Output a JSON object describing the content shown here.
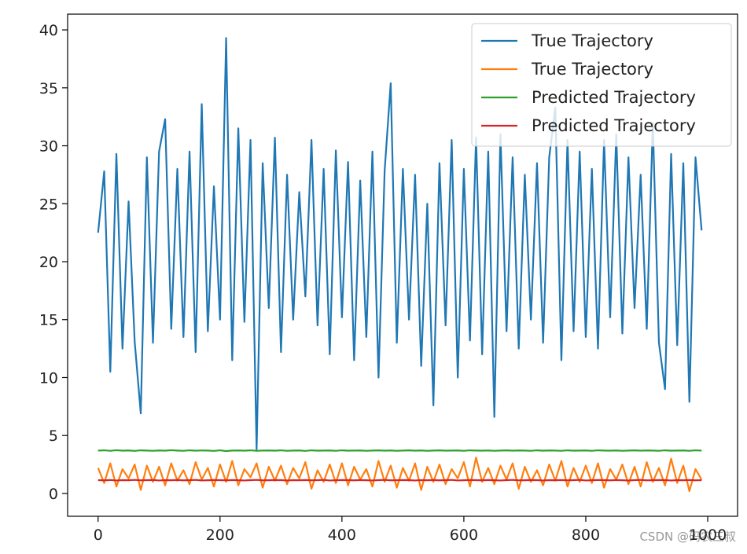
{
  "chart_data": {
    "type": "line",
    "x": [
      0,
      10,
      20,
      30,
      40,
      50,
      60,
      70,
      80,
      90,
      100,
      110,
      120,
      130,
      140,
      150,
      160,
      170,
      180,
      190,
      200,
      210,
      220,
      230,
      240,
      250,
      260,
      270,
      280,
      290,
      300,
      310,
      320,
      330,
      340,
      350,
      360,
      370,
      380,
      390,
      400,
      410,
      420,
      430,
      440,
      450,
      460,
      470,
      480,
      490,
      500,
      510,
      520,
      530,
      540,
      550,
      560,
      570,
      580,
      590,
      600,
      610,
      620,
      630,
      640,
      650,
      660,
      670,
      680,
      690,
      700,
      710,
      720,
      730,
      740,
      750,
      760,
      770,
      780,
      790,
      800,
      810,
      820,
      830,
      840,
      850,
      860,
      870,
      880,
      890,
      900,
      910,
      920,
      930,
      940,
      950,
      960,
      970,
      980,
      990
    ],
    "series": [
      {
        "name": "True Trajectory",
        "color": "#1f77b4",
        "values": [
          22.5,
          27.8,
          10.5,
          29.3,
          12.5,
          25.2,
          13.1,
          6.9,
          29.0,
          13.0,
          29.5,
          32.3,
          14.2,
          28.0,
          13.5,
          29.5,
          12.2,
          33.6,
          14.0,
          26.5,
          15.0,
          39.3,
          11.5,
          31.5,
          14.8,
          30.5,
          3.8,
          28.5,
          16.0,
          30.7,
          12.2,
          27.5,
          15.0,
          26.0,
          17.0,
          30.5,
          14.5,
          28.0,
          12.0,
          29.6,
          15.2,
          28.6,
          11.5,
          27.0,
          13.5,
          29.5,
          10.0,
          27.8,
          35.4,
          13.0,
          28.0,
          15.0,
          27.5,
          11.0,
          25.0,
          7.6,
          28.5,
          14.5,
          30.5,
          10.0,
          28.0,
          13.2,
          30.7,
          12.0,
          29.5,
          6.6,
          31.0,
          14.0,
          29.0,
          12.5,
          27.5,
          15.0,
          28.5,
          13.0,
          29.0,
          33.3,
          11.5,
          30.5,
          14.0,
          29.5,
          13.5,
          28.0,
          12.5,
          30.5,
          15.2,
          31.0,
          13.8,
          29.0,
          16.0,
          27.5,
          14.2,
          32.0,
          13.0,
          9.0,
          29.3,
          12.8,
          28.5,
          7.9,
          29.0,
          22.7
        ]
      },
      {
        "name": "True Trajectory",
        "color": "#ff7f0e",
        "values": [
          2.2,
          0.9,
          2.6,
          0.6,
          2.1,
          1.3,
          2.5,
          0.3,
          2.4,
          1.0,
          2.3,
          0.7,
          2.6,
          1.1,
          2.0,
          0.8,
          2.7,
          1.2,
          2.2,
          0.6,
          2.5,
          1.0,
          2.8,
          0.7,
          2.1,
          1.4,
          2.6,
          0.5,
          2.3,
          1.1,
          2.4,
          0.8,
          2.2,
          1.3,
          2.7,
          0.4,
          2.0,
          1.0,
          2.5,
          0.9,
          2.6,
          0.7,
          2.3,
          1.2,
          2.1,
          0.6,
          2.8,
          1.0,
          2.4,
          0.5,
          2.2,
          1.1,
          2.6,
          0.3,
          2.3,
          1.0,
          2.5,
          0.8,
          2.1,
          1.3,
          2.7,
          0.6,
          3.1,
          1.0,
          2.2,
          0.8,
          2.4,
          1.2,
          2.6,
          0.4,
          2.3,
          1.0,
          2.0,
          0.7,
          2.5,
          1.1,
          2.8,
          0.6,
          2.2,
          1.0,
          2.4,
          0.9,
          2.6,
          0.5,
          2.1,
          1.2,
          2.5,
          0.8,
          2.3,
          0.6,
          2.7,
          1.0,
          2.2,
          0.7,
          3.0,
          0.9,
          2.4,
          0.2,
          2.1,
          1.2
        ]
      },
      {
        "name": "Predicted Trajectory",
        "color": "#2ca02c",
        "values": [
          3.7,
          3.72,
          3.68,
          3.73,
          3.69,
          3.71,
          3.67,
          3.72,
          3.7,
          3.68,
          3.71,
          3.69,
          3.73,
          3.7,
          3.68,
          3.72,
          3.69,
          3.71,
          3.7,
          3.67,
          3.72,
          3.66,
          3.7,
          3.71,
          3.69,
          3.72,
          3.68,
          3.7,
          3.71,
          3.69,
          3.72,
          3.68,
          3.7,
          3.71,
          3.67,
          3.72,
          3.69,
          3.7,
          3.71,
          3.68,
          3.72,
          3.69,
          3.7,
          3.71,
          3.68,
          3.7,
          3.72,
          3.69,
          3.71,
          3.68,
          3.7,
          3.72,
          3.69,
          3.71,
          3.68,
          3.7,
          3.72,
          3.69,
          3.7,
          3.71,
          3.68,
          3.72,
          3.7,
          3.69,
          3.71,
          3.68,
          3.7,
          3.72,
          3.69,
          3.71,
          3.7,
          3.68,
          3.72,
          3.69,
          3.71,
          3.7,
          3.68,
          3.72,
          3.69,
          3.7,
          3.71,
          3.68,
          3.72,
          3.7,
          3.69,
          3.71,
          3.68,
          3.7,
          3.72,
          3.69,
          3.71,
          3.7,
          3.68,
          3.72,
          3.69,
          3.7,
          3.71,
          3.68,
          3.72,
          3.7
        ]
      },
      {
        "name": "Predicted Trajectory",
        "color": "#d62728",
        "values": [
          1.15,
          1.13,
          1.16,
          1.12,
          1.15,
          1.14,
          1.17,
          1.13,
          1.15,
          1.16,
          1.12,
          1.15,
          1.14,
          1.16,
          1.13,
          1.15,
          1.17,
          1.12,
          1.14,
          1.16,
          1.15,
          1.13,
          1.16,
          1.14,
          1.12,
          1.15,
          1.17,
          1.13,
          1.14,
          1.16,
          1.15,
          1.12,
          1.15,
          1.14,
          1.16,
          1.13,
          1.15,
          1.17,
          1.12,
          1.14,
          1.16,
          1.15,
          1.13,
          1.16,
          1.14,
          1.12,
          1.15,
          1.17,
          1.13,
          1.14,
          1.16,
          1.15,
          1.12,
          1.15,
          1.14,
          1.16,
          1.13,
          1.15,
          1.17,
          1.12,
          1.14,
          1.16,
          1.15,
          1.13,
          1.16,
          1.14,
          1.12,
          1.15,
          1.17,
          1.13,
          1.14,
          1.16,
          1.15,
          1.12,
          1.15,
          1.14,
          1.16,
          1.13,
          1.15,
          1.17,
          1.12,
          1.14,
          1.16,
          1.15,
          1.13,
          1.16,
          1.14,
          1.12,
          1.15,
          1.17,
          1.13,
          1.14,
          1.16,
          1.15,
          1.12,
          1.15,
          1.14,
          1.16,
          1.13,
          1.15
        ]
      }
    ],
    "xlim": [
      -50,
      1049
    ],
    "ylim": [
      -1.97,
      41.36
    ],
    "xticks": [
      0,
      200,
      400,
      600,
      800,
      1000
    ],
    "yticks": [
      0,
      5,
      10,
      15,
      20,
      25,
      30,
      35,
      40
    ],
    "grid": false,
    "legend": "upper right",
    "watermark": "CSDN @码农三叔"
  }
}
